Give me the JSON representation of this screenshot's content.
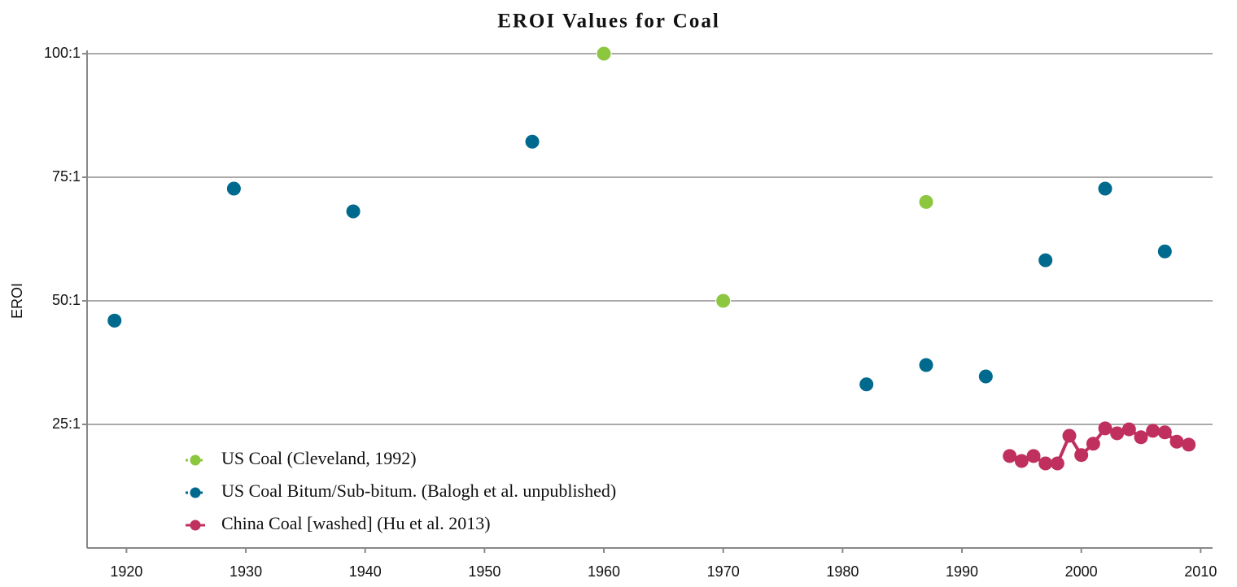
{
  "chart_data": {
    "type": "scatter",
    "title": "EROI Values for Coal",
    "y_label": "EROI",
    "xlim": [
      1916.7,
      2011
    ],
    "xticks": [
      1920,
      1930,
      1940,
      1950,
      1960,
      1970,
      1980,
      1990,
      2000,
      2010
    ],
    "ylim": [
      0,
      100
    ],
    "yticks": [
      {
        "value": 25,
        "label": "25:1"
      },
      {
        "value": 50,
        "label": "50:1"
      },
      {
        "value": 75,
        "label": "75:1"
      },
      {
        "value": 100,
        "label": "100:1"
      }
    ],
    "grid": true,
    "legend": "lower left",
    "series": [
      {
        "name": "US Coal (Cleveland, 1992)",
        "color": "#8dc63f",
        "line": false,
        "x": [
          1960,
          1970,
          1987
        ],
        "values": [
          100,
          50,
          70
        ]
      },
      {
        "name": "US Coal Bitum/Sub-bitum. (Balogh et al. unpublished)",
        "color": "#006a8e",
        "line": false,
        "x": [
          1919,
          1929,
          1939,
          1954,
          1982,
          1987,
          1992,
          1997,
          2002,
          2007
        ],
        "values": [
          46,
          72.7,
          68.1,
          82.2,
          33.1,
          37,
          34.7,
          58.2,
          72.7,
          60
        ]
      },
      {
        "name": "China Coal [washed] (Hu et al. 2013)",
        "color": "#c0305f",
        "line": true,
        "x": [
          1994,
          1995,
          1996,
          1997,
          1998,
          1999,
          2000,
          2001,
          2002,
          2003,
          2004,
          2005,
          2006,
          2007,
          2008,
          2009
        ],
        "values": [
          18.6,
          17.6,
          18.6,
          17.1,
          17.1,
          22.7,
          18.8,
          21.1,
          24.2,
          23.2,
          24.0,
          22.4,
          23.7,
          23.4,
          21.5,
          20.9
        ]
      }
    ]
  }
}
